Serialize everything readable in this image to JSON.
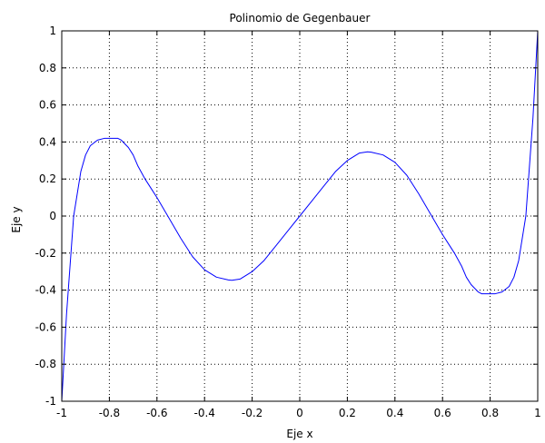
{
  "chart_data": {
    "type": "line",
    "title": "Polinomio de Gegenbauer",
    "xlabel": "Eje x",
    "ylabel": "Eje y",
    "xlim": [
      -1,
      1
    ],
    "ylim": [
      -1,
      1
    ],
    "grid": true,
    "grid_style": "dotted",
    "x_ticks": [
      "-1",
      "-0.8",
      "-0.6",
      "-0.4",
      "-0.2",
      "0",
      "0.2",
      "0.4",
      "0.6",
      "0.8",
      "1"
    ],
    "y_ticks": [
      "-1",
      "-0.8",
      "-0.6",
      "-0.4",
      "-0.2",
      "0",
      "0.2",
      "0.4",
      "0.6",
      "0.8",
      "1"
    ],
    "series": [
      {
        "color": "#0000ff",
        "x": [
          -1.0,
          -0.98,
          -0.95,
          -0.92,
          -0.9,
          -0.88,
          -0.85,
          -0.82,
          -0.8,
          -0.78,
          -0.765,
          -0.75,
          -0.72,
          -0.7,
          -0.68,
          -0.65,
          -0.62,
          -0.6,
          -0.55,
          -0.5,
          -0.45,
          -0.4,
          -0.35,
          -0.3,
          -0.285,
          -0.25,
          -0.2,
          -0.15,
          -0.1,
          -0.05,
          0.0,
          0.05,
          0.1,
          0.15,
          0.2,
          0.25,
          0.285,
          0.3,
          0.35,
          0.4,
          0.45,
          0.5,
          0.55,
          0.6,
          0.62,
          0.65,
          0.68,
          0.7,
          0.72,
          0.75,
          0.765,
          0.78,
          0.8,
          0.82,
          0.85,
          0.88,
          0.9,
          0.92,
          0.95,
          0.98,
          1.0
        ],
        "y": [
          -1.0,
          -0.53,
          0.0,
          0.24,
          0.33,
          0.38,
          0.41,
          0.42,
          0.42,
          0.42,
          0.42,
          0.41,
          0.37,
          0.33,
          0.27,
          0.2,
          0.14,
          0.1,
          -0.01,
          -0.12,
          -0.22,
          -0.29,
          -0.33,
          -0.345,
          -0.347,
          -0.34,
          -0.3,
          -0.24,
          -0.16,
          -0.08,
          0.0,
          0.08,
          0.16,
          0.24,
          0.3,
          0.34,
          0.347,
          0.345,
          0.33,
          0.29,
          0.22,
          0.12,
          0.01,
          -0.1,
          -0.14,
          -0.2,
          -0.27,
          -0.33,
          -0.37,
          -0.41,
          -0.42,
          -0.42,
          -0.42,
          -0.42,
          -0.41,
          -0.38,
          -0.33,
          -0.24,
          0.0,
          0.53,
          1.0
        ]
      }
    ]
  }
}
